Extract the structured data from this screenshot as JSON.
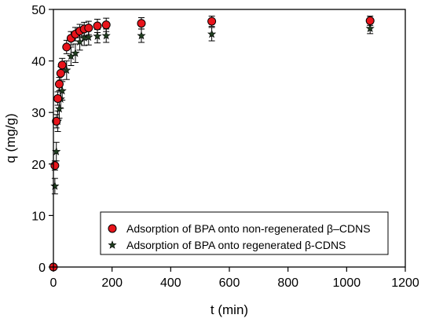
{
  "chart_data": {
    "type": "scatter",
    "title": "",
    "xlabel": "t (min)",
    "ylabel": "q (mg/g)",
    "xlim": [
      0,
      1200
    ],
    "ylim": [
      0,
      50
    ],
    "xticks": [
      0,
      200,
      400,
      600,
      800,
      1000,
      1200
    ],
    "yticks": [
      0,
      10,
      20,
      30,
      40,
      50
    ],
    "grid": false,
    "legend_position": "bottom-right",
    "series": [
      {
        "name": "Adsorption of BPA onto non-regenerated β–CDNS",
        "marker": "circle",
        "color": "#e8141b",
        "points": [
          {
            "x": 0,
            "y": 0,
            "err": 0
          },
          {
            "x": 5,
            "y": 19.7,
            "err": 0.9
          },
          {
            "x": 10,
            "y": 28.3,
            "err": 1.3
          },
          {
            "x": 15,
            "y": 32.7,
            "err": 1.3
          },
          {
            "x": 20,
            "y": 35.5,
            "err": 1.3
          },
          {
            "x": 25,
            "y": 37.6,
            "err": 1.3
          },
          {
            "x": 30,
            "y": 39.2,
            "err": 1.3
          },
          {
            "x": 45,
            "y": 42.7,
            "err": 1.3
          },
          {
            "x": 60,
            "y": 44.4,
            "err": 1.3
          },
          {
            "x": 75,
            "y": 45.2,
            "err": 1.3
          },
          {
            "x": 90,
            "y": 45.8,
            "err": 1.3
          },
          {
            "x": 105,
            "y": 46.2,
            "err": 1.3
          },
          {
            "x": 120,
            "y": 46.4,
            "err": 1.3
          },
          {
            "x": 150,
            "y": 46.8,
            "err": 1.3
          },
          {
            "x": 180,
            "y": 47.0,
            "err": 1.3
          },
          {
            "x": 300,
            "y": 47.3,
            "err": 1.1
          },
          {
            "x": 540,
            "y": 47.7,
            "err": 1.0
          },
          {
            "x": 1080,
            "y": 47.8,
            "err": 0.9
          }
        ]
      },
      {
        "name": "Adsorption of BPA onto regenerated β-CDNS",
        "marker": "star",
        "color": "#1f3d1f",
        "points": [
          {
            "x": 5,
            "y": 15.7,
            "err": 1.5
          },
          {
            "x": 10,
            "y": 22.4,
            "err": 1.8
          },
          {
            "x": 15,
            "y": 28.3,
            "err": 2.0
          },
          {
            "x": 20,
            "y": 30.7,
            "err": 1.8
          },
          {
            "x": 25,
            "y": 32.6,
            "err": 1.8
          },
          {
            "x": 30,
            "y": 34.2,
            "err": 1.8
          },
          {
            "x": 45,
            "y": 38.2,
            "err": 1.8
          },
          {
            "x": 60,
            "y": 40.9,
            "err": 1.8
          },
          {
            "x": 75,
            "y": 41.5,
            "err": 1.8
          },
          {
            "x": 90,
            "y": 43.7,
            "err": 1.6
          },
          {
            "x": 105,
            "y": 44.5,
            "err": 1.5
          },
          {
            "x": 120,
            "y": 44.6,
            "err": 1.5
          },
          {
            "x": 150,
            "y": 44.8,
            "err": 1.3
          },
          {
            "x": 180,
            "y": 44.9,
            "err": 1.3
          },
          {
            "x": 300,
            "y": 44.9,
            "err": 1.3
          },
          {
            "x": 540,
            "y": 45.2,
            "err": 1.3
          },
          {
            "x": 1080,
            "y": 46.3,
            "err": 1.0
          }
        ]
      }
    ]
  }
}
